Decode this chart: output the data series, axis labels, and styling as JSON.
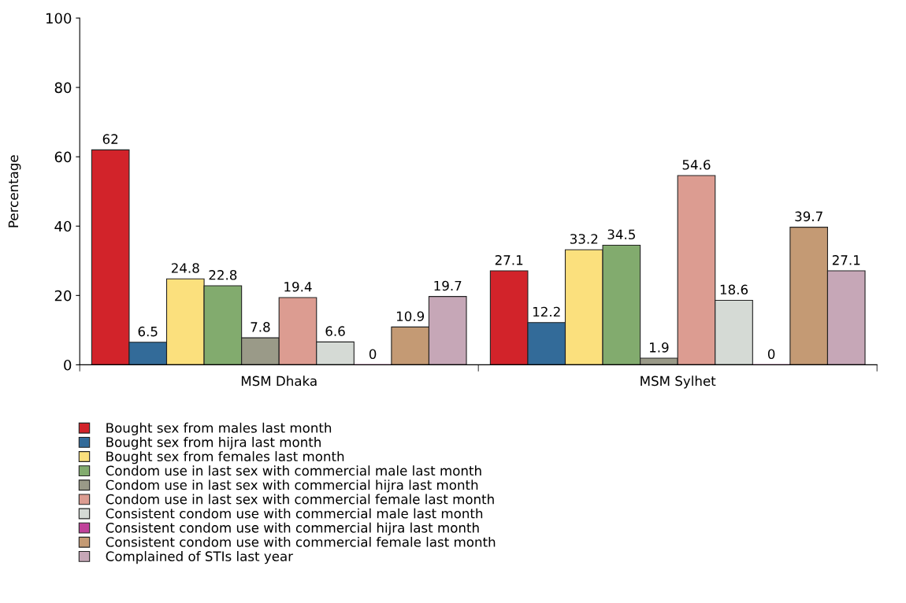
{
  "chart_data": {
    "type": "bar",
    "ylabel": "Percentage",
    "categories": [
      "MSM Dhaka",
      "MSM Sylhet"
    ],
    "series": [
      {
        "name": "Bought sex from males last month",
        "color": "#d2232a",
        "values": [
          62,
          27.1
        ]
      },
      {
        "name": "Bought sex from hijra last month",
        "color": "#336b99",
        "values": [
          6.5,
          12.2
        ]
      },
      {
        "name": "Bought sex from females last month",
        "color": "#fbe07d",
        "values": [
          24.8,
          33.2
        ]
      },
      {
        "name": "Condom use in last sex with commercial male last month",
        "color": "#82ab6e",
        "values": [
          22.8,
          34.5
        ]
      },
      {
        "name": "Condom use in last sex with commercial hijra last month",
        "color": "#9a9a88",
        "values": [
          7.8,
          1.9
        ]
      },
      {
        "name": "Condom use in last sex with commercial female last month",
        "color": "#dc9c91",
        "values": [
          19.4,
          54.6
        ]
      },
      {
        "name": "Consistent condom use with commercial male last month",
        "color": "#d5dad5",
        "values": [
          6.6,
          18.6
        ]
      },
      {
        "name": "Consistent condom use with commercial hijra last month",
        "color": "#c0419a",
        "values": [
          0,
          0
        ]
      },
      {
        "name": "Consistent condom use with commercial female last month",
        "color": "#c49a74",
        "values": [
          10.9,
          39.7
        ]
      },
      {
        "name": "Complained of STIs last year",
        "color": "#c6a7b7",
        "values": [
          19.7,
          27.1
        ]
      }
    ],
    "ylim": [
      0,
      100
    ],
    "yticks": [
      0,
      20,
      40,
      60,
      80,
      100
    ],
    "grid": false,
    "legend": "bottom left",
    "data_labels": true
  }
}
